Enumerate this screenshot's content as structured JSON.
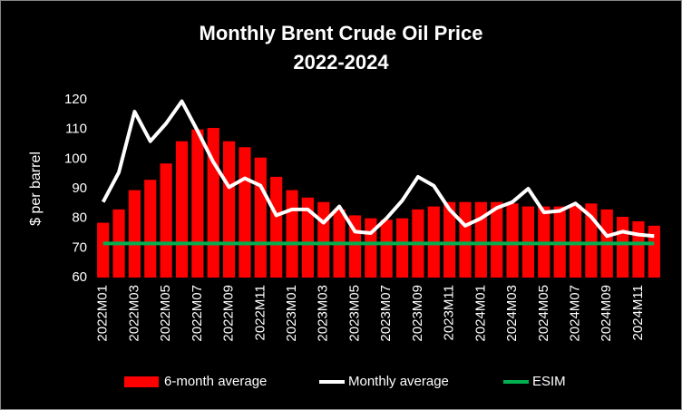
{
  "chart_data": {
    "type": "bar",
    "title": "Monthly Brent Crude Oil Price",
    "subtitle": "2022-2024",
    "y_label": "$ per barrel",
    "categories": [
      "2022M01",
      null,
      "2022M03",
      null,
      "2022M05",
      null,
      "2022M07",
      null,
      "2022M09",
      null,
      "2022M11",
      null,
      "2023M01",
      null,
      "2023M03",
      null,
      "2023M05",
      null,
      "2023M07",
      null,
      "2023M09",
      null,
      "2023M11",
      null,
      "2024M01",
      null,
      "2024M03",
      null,
      "2024M05",
      null,
      "2024M07",
      null,
      "2024M09",
      null,
      "2024M11",
      null
    ],
    "series": [
      {
        "name": "6-month average",
        "type": "bar",
        "color": "#ff0000",
        "values": [
          78.5,
          83,
          89.5,
          93,
          98.5,
          106,
          110,
          110.5,
          106,
          104,
          100.5,
          94,
          89.5,
          87,
          85.5,
          83,
          81,
          80,
          79.5,
          80,
          83,
          84,
          85.5,
          85.5,
          85.5,
          85.5,
          85,
          84,
          84,
          84,
          84.5,
          85,
          83,
          80.5,
          79,
          77.5
        ]
      },
      {
        "name": "Monthly average",
        "type": "line",
        "color": "#ffffff",
        "values": [
          85.5,
          95.5,
          116,
          106,
          112,
          119.5,
          109.5,
          99,
          90.5,
          93.5,
          91,
          81,
          83,
          83,
          78.5,
          84,
          75.5,
          75,
          80,
          86,
          94,
          91,
          83,
          77.5,
          80,
          83.5,
          85.5,
          90,
          82,
          82.5,
          85,
          80.5,
          74,
          75.5,
          74.5,
          74
        ]
      },
      {
        "name": "ESIM",
        "type": "line",
        "color": "#00b050",
        "values": [
          71.5,
          71.5,
          71.5,
          71.5,
          71.5,
          71.5,
          71.5,
          71.5,
          71.5,
          71.5,
          71.5,
          71.5,
          71.5,
          71.5,
          71.5,
          71.5,
          71.5,
          71.5,
          71.5,
          71.5,
          71.5,
          71.5,
          71.5,
          71.5,
          71.5,
          71.5,
          71.5,
          71.5,
          71.5,
          71.5,
          71.5,
          71.5,
          71.5,
          71.5,
          71.5,
          71.5
        ]
      }
    ],
    "ylim": [
      60,
      120
    ],
    "yticks": [
      60,
      70,
      80,
      90,
      100,
      110,
      120
    ],
    "grid": false,
    "legend": "bottom"
  }
}
